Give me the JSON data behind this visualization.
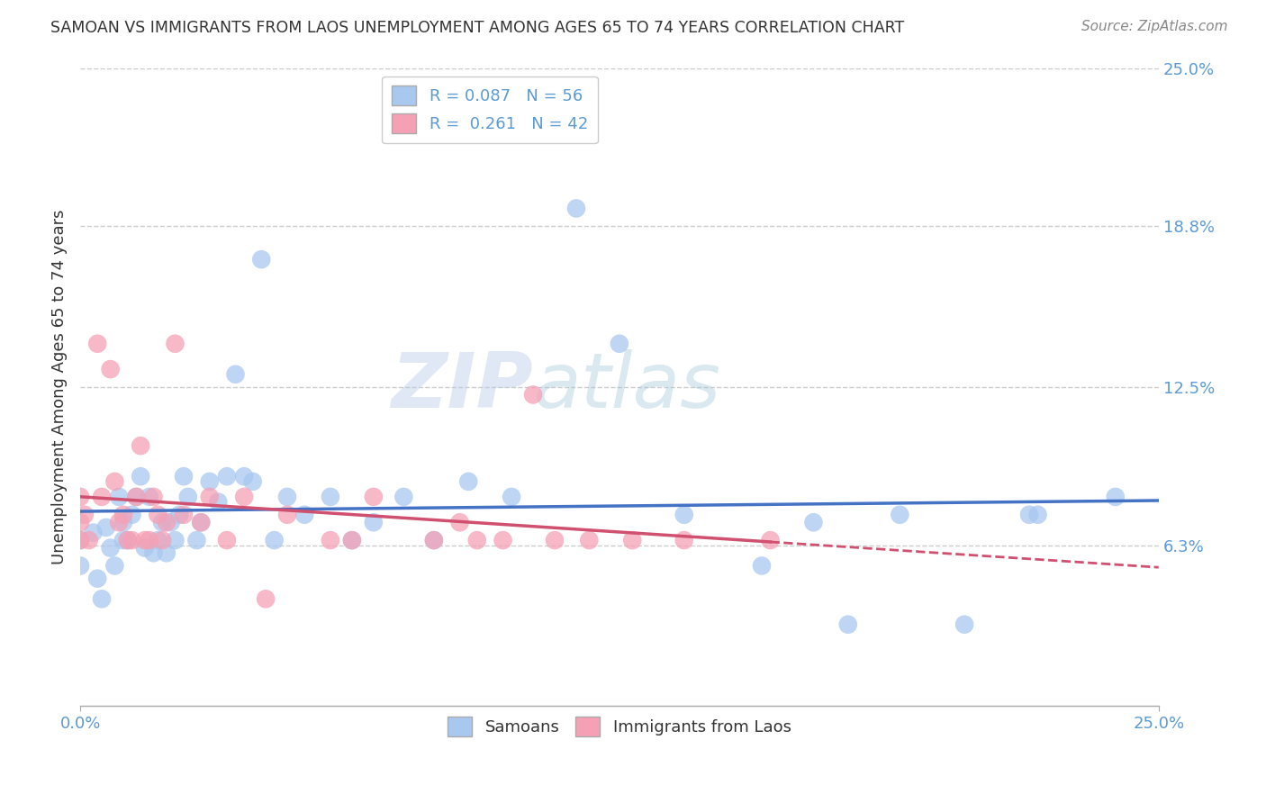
{
  "title": "SAMOAN VS IMMIGRANTS FROM LAOS UNEMPLOYMENT AMONG AGES 65 TO 74 YEARS CORRELATION CHART",
  "source": "Source: ZipAtlas.com",
  "ylabel": "Unemployment Among Ages 65 to 74 years",
  "xlim": [
    0.0,
    0.25
  ],
  "ylim": [
    0.0,
    0.25
  ],
  "ytick_vals": [
    0.063,
    0.125,
    0.188,
    0.25
  ],
  "ytick_labels": [
    "6.3%",
    "12.5%",
    "18.8%",
    "25.0%"
  ],
  "xtick_vals": [
    0.0,
    0.25
  ],
  "xtick_labels": [
    "0.0%",
    "25.0%"
  ],
  "legend_entries": [
    {
      "label": "R = 0.087   N = 56",
      "color": "#A8C8F0"
    },
    {
      "label": "R =  0.261   N = 42",
      "color": "#F5A0B5"
    }
  ],
  "samoans_x": [
    0.0,
    0.0,
    0.003,
    0.004,
    0.005,
    0.006,
    0.007,
    0.008,
    0.009,
    0.01,
    0.01,
    0.011,
    0.012,
    0.013,
    0.014,
    0.015,
    0.016,
    0.017,
    0.018,
    0.019,
    0.02,
    0.021,
    0.022,
    0.023,
    0.024,
    0.025,
    0.027,
    0.028,
    0.03,
    0.032,
    0.034,
    0.036,
    0.038,
    0.04,
    0.042,
    0.045,
    0.048,
    0.052,
    0.058,
    0.063,
    0.068,
    0.075,
    0.082,
    0.09,
    0.1,
    0.115,
    0.125,
    0.14,
    0.158,
    0.17,
    0.178,
    0.19,
    0.205,
    0.22,
    0.222,
    0.24
  ],
  "samoans_y": [
    0.065,
    0.055,
    0.068,
    0.05,
    0.042,
    0.07,
    0.062,
    0.055,
    0.082,
    0.065,
    0.072,
    0.065,
    0.075,
    0.082,
    0.09,
    0.062,
    0.082,
    0.06,
    0.065,
    0.072,
    0.06,
    0.072,
    0.065,
    0.075,
    0.09,
    0.082,
    0.065,
    0.072,
    0.088,
    0.08,
    0.09,
    0.13,
    0.09,
    0.088,
    0.175,
    0.065,
    0.082,
    0.075,
    0.082,
    0.065,
    0.072,
    0.082,
    0.065,
    0.088,
    0.082,
    0.195,
    0.142,
    0.075,
    0.055,
    0.072,
    0.032,
    0.075,
    0.032,
    0.075,
    0.075,
    0.082
  ],
  "laos_x": [
    0.0,
    0.0,
    0.0,
    0.001,
    0.002,
    0.004,
    0.005,
    0.007,
    0.008,
    0.009,
    0.01,
    0.011,
    0.012,
    0.013,
    0.014,
    0.015,
    0.016,
    0.017,
    0.018,
    0.019,
    0.02,
    0.022,
    0.024,
    0.028,
    0.03,
    0.034,
    0.038,
    0.043,
    0.048,
    0.058,
    0.063,
    0.068,
    0.082,
    0.088,
    0.092,
    0.098,
    0.105,
    0.11,
    0.118,
    0.128,
    0.14,
    0.16
  ],
  "laos_y": [
    0.072,
    0.082,
    0.065,
    0.075,
    0.065,
    0.142,
    0.082,
    0.132,
    0.088,
    0.072,
    0.075,
    0.065,
    0.065,
    0.082,
    0.102,
    0.065,
    0.065,
    0.082,
    0.075,
    0.065,
    0.072,
    0.142,
    0.075,
    0.072,
    0.082,
    0.065,
    0.082,
    0.042,
    0.075,
    0.065,
    0.065,
    0.082,
    0.065,
    0.072,
    0.065,
    0.065,
    0.122,
    0.065,
    0.065,
    0.065,
    0.065,
    0.065
  ],
  "blue_color": "#A8C8F0",
  "pink_color": "#F5A0B5",
  "blue_line_color": "#4472C4",
  "pink_line_color": "#D05070",
  "watermark_zip": "ZIP",
  "watermark_atlas": "atlas",
  "grid_color": "#CCCCCC",
  "background_color": "#FFFFFF",
  "axis_label_color": "#5B9BD5",
  "text_color": "#333333",
  "source_color": "#888888"
}
